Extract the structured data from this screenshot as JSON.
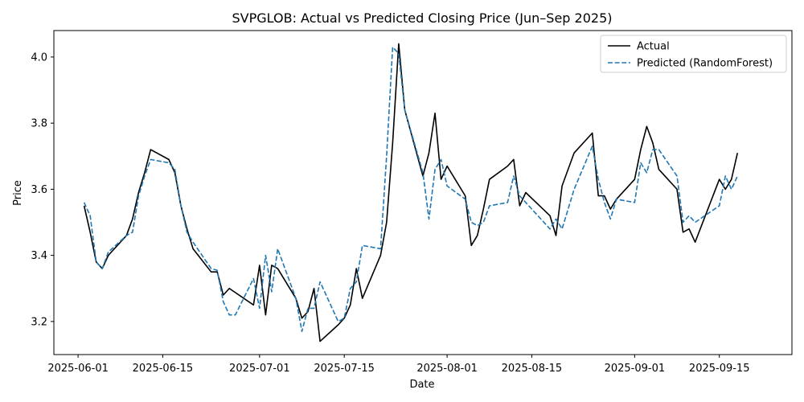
{
  "chart_data": {
    "type": "line",
    "title": "SVPGLOB: Actual vs Predicted Closing Price (Jun–Sep 2025)",
    "xlabel": "Date",
    "ylabel": "Price",
    "xlim": [
      "2025-05-28",
      "2025-09-27"
    ],
    "ylim": [
      3.1,
      4.08
    ],
    "grid": false,
    "legend_position": "top-right",
    "x_ticks": [
      "2025-06-01",
      "2025-06-15",
      "2025-07-01",
      "2025-07-15",
      "2025-08-01",
      "2025-08-15",
      "2025-09-01",
      "2025-09-15"
    ],
    "y_ticks": [
      3.2,
      3.4,
      3.6,
      3.8,
      4.0
    ],
    "y_tick_labels": [
      "3.2",
      "3.4",
      "3.6",
      "3.8",
      "4.0"
    ],
    "series": [
      {
        "name": "Actual",
        "color": "#000000",
        "style": "solid",
        "points": [
          [
            "2025-06-02",
            3.55
          ],
          [
            "2025-06-03",
            3.47
          ],
          [
            "2025-06-04",
            3.38
          ],
          [
            "2025-06-05",
            3.36
          ],
          [
            "2025-06-06",
            3.4
          ],
          [
            "2025-06-09",
            3.46
          ],
          [
            "2025-06-10",
            3.51
          ],
          [
            "2025-06-11",
            3.59
          ],
          [
            "2025-06-12",
            3.65
          ],
          [
            "2025-06-13",
            3.72
          ],
          [
            "2025-06-16",
            3.69
          ],
          [
            "2025-06-17",
            3.65
          ],
          [
            "2025-06-18",
            3.55
          ],
          [
            "2025-06-19",
            3.48
          ],
          [
            "2025-06-20",
            3.42
          ],
          [
            "2025-06-23",
            3.35
          ],
          [
            "2025-06-24",
            3.35
          ],
          [
            "2025-06-25",
            3.28
          ],
          [
            "2025-06-26",
            3.3
          ],
          [
            "2025-06-30",
            3.25
          ],
          [
            "2025-07-01",
            3.37
          ],
          [
            "2025-07-02",
            3.22
          ],
          [
            "2025-07-03",
            3.37
          ],
          [
            "2025-07-04",
            3.36
          ],
          [
            "2025-07-07",
            3.27
          ],
          [
            "2025-07-08",
            3.21
          ],
          [
            "2025-07-09",
            3.23
          ],
          [
            "2025-07-10",
            3.3
          ],
          [
            "2025-07-11",
            3.14
          ],
          [
            "2025-07-14",
            3.19
          ],
          [
            "2025-07-15",
            3.21
          ],
          [
            "2025-07-16",
            3.25
          ],
          [
            "2025-07-17",
            3.36
          ],
          [
            "2025-07-18",
            3.27
          ],
          [
            "2025-07-21",
            3.4
          ],
          [
            "2025-07-22",
            3.5
          ],
          [
            "2025-07-23",
            3.74
          ],
          [
            "2025-07-24",
            4.04
          ],
          [
            "2025-07-25",
            3.84
          ],
          [
            "2025-07-28",
            3.64
          ],
          [
            "2025-07-29",
            3.71
          ],
          [
            "2025-07-30",
            3.83
          ],
          [
            "2025-07-31",
            3.63
          ],
          [
            "2025-08-01",
            3.67
          ],
          [
            "2025-08-04",
            3.58
          ],
          [
            "2025-08-05",
            3.43
          ],
          [
            "2025-08-06",
            3.46
          ],
          [
            "2025-08-07",
            3.54
          ],
          [
            "2025-08-08",
            3.63
          ],
          [
            "2025-08-11",
            3.67
          ],
          [
            "2025-08-12",
            3.69
          ],
          [
            "2025-08-13",
            3.55
          ],
          [
            "2025-08-14",
            3.59
          ],
          [
            "2025-08-18",
            3.52
          ],
          [
            "2025-08-19",
            3.46
          ],
          [
            "2025-08-20",
            3.61
          ],
          [
            "2025-08-22",
            3.71
          ],
          [
            "2025-08-25",
            3.77
          ],
          [
            "2025-08-26",
            3.58
          ],
          [
            "2025-08-27",
            3.58
          ],
          [
            "2025-08-28",
            3.54
          ],
          [
            "2025-08-29",
            3.57
          ],
          [
            "2025-09-01",
            3.63
          ],
          [
            "2025-09-02",
            3.72
          ],
          [
            "2025-09-03",
            3.79
          ],
          [
            "2025-09-04",
            3.74
          ],
          [
            "2025-09-05",
            3.66
          ],
          [
            "2025-09-08",
            3.6
          ],
          [
            "2025-09-09",
            3.47
          ],
          [
            "2025-09-10",
            3.48
          ],
          [
            "2025-09-11",
            3.44
          ],
          [
            "2025-09-15",
            3.63
          ],
          [
            "2025-09-16",
            3.6
          ],
          [
            "2025-09-17",
            3.63
          ],
          [
            "2025-09-18",
            3.71
          ]
        ]
      },
      {
        "name": "Predicted (RandomForest)",
        "color": "#1f77b4",
        "style": "dashed",
        "points": [
          [
            "2025-06-02",
            3.56
          ],
          [
            "2025-06-03",
            3.52
          ],
          [
            "2025-06-04",
            3.38
          ],
          [
            "2025-06-05",
            3.36
          ],
          [
            "2025-06-06",
            3.41
          ],
          [
            "2025-06-09",
            3.46
          ],
          [
            "2025-06-10",
            3.47
          ],
          [
            "2025-06-11",
            3.58
          ],
          [
            "2025-06-12",
            3.64
          ],
          [
            "2025-06-13",
            3.69
          ],
          [
            "2025-06-16",
            3.68
          ],
          [
            "2025-06-17",
            3.66
          ],
          [
            "2025-06-18",
            3.55
          ],
          [
            "2025-06-19",
            3.47
          ],
          [
            "2025-06-20",
            3.44
          ],
          [
            "2025-06-23",
            3.36
          ],
          [
            "2025-06-24",
            3.355
          ],
          [
            "2025-06-25",
            3.26
          ],
          [
            "2025-06-26",
            3.22
          ],
          [
            "2025-06-27",
            3.22
          ],
          [
            "2025-06-30",
            3.33
          ],
          [
            "2025-07-01",
            3.24
          ],
          [
            "2025-07-02",
            3.4
          ],
          [
            "2025-07-03",
            3.29
          ],
          [
            "2025-07-04",
            3.42
          ],
          [
            "2025-07-07",
            3.27
          ],
          [
            "2025-07-08",
            3.17
          ],
          [
            "2025-07-09",
            3.24
          ],
          [
            "2025-07-10",
            3.24
          ],
          [
            "2025-07-11",
            3.32
          ],
          [
            "2025-07-14",
            3.2
          ],
          [
            "2025-07-15",
            3.21
          ],
          [
            "2025-07-16",
            3.3
          ],
          [
            "2025-07-17",
            3.32
          ],
          [
            "2025-07-18",
            3.43
          ],
          [
            "2025-07-21",
            3.42
          ],
          [
            "2025-07-22",
            3.7
          ],
          [
            "2025-07-23",
            4.03
          ],
          [
            "2025-07-24",
            4.01
          ],
          [
            "2025-07-25",
            3.84
          ],
          [
            "2025-07-28",
            3.65
          ],
          [
            "2025-07-29",
            3.51
          ],
          [
            "2025-07-30",
            3.66
          ],
          [
            "2025-07-31",
            3.69
          ],
          [
            "2025-08-01",
            3.61
          ],
          [
            "2025-08-04",
            3.57
          ],
          [
            "2025-08-05",
            3.5
          ],
          [
            "2025-08-06",
            3.49
          ],
          [
            "2025-08-07",
            3.5
          ],
          [
            "2025-08-08",
            3.55
          ],
          [
            "2025-08-11",
            3.56
          ],
          [
            "2025-08-12",
            3.64
          ],
          [
            "2025-08-13",
            3.58
          ],
          [
            "2025-08-14",
            3.56
          ],
          [
            "2025-08-18",
            3.48
          ],
          [
            "2025-08-19",
            3.51
          ],
          [
            "2025-08-20",
            3.48
          ],
          [
            "2025-08-22",
            3.6
          ],
          [
            "2025-08-25",
            3.73
          ],
          [
            "2025-08-26",
            3.63
          ],
          [
            "2025-08-27",
            3.56
          ],
          [
            "2025-08-28",
            3.51
          ],
          [
            "2025-08-29",
            3.57
          ],
          [
            "2025-09-01",
            3.56
          ],
          [
            "2025-09-02",
            3.68
          ],
          [
            "2025-09-03",
            3.65
          ],
          [
            "2025-09-04",
            3.72
          ],
          [
            "2025-09-05",
            3.72
          ],
          [
            "2025-09-08",
            3.64
          ],
          [
            "2025-09-09",
            3.5
          ],
          [
            "2025-09-10",
            3.52
          ],
          [
            "2025-09-11",
            3.5
          ],
          [
            "2025-09-15",
            3.55
          ],
          [
            "2025-09-16",
            3.64
          ],
          [
            "2025-09-17",
            3.6
          ],
          [
            "2025-09-18",
            3.64
          ]
        ]
      }
    ]
  }
}
